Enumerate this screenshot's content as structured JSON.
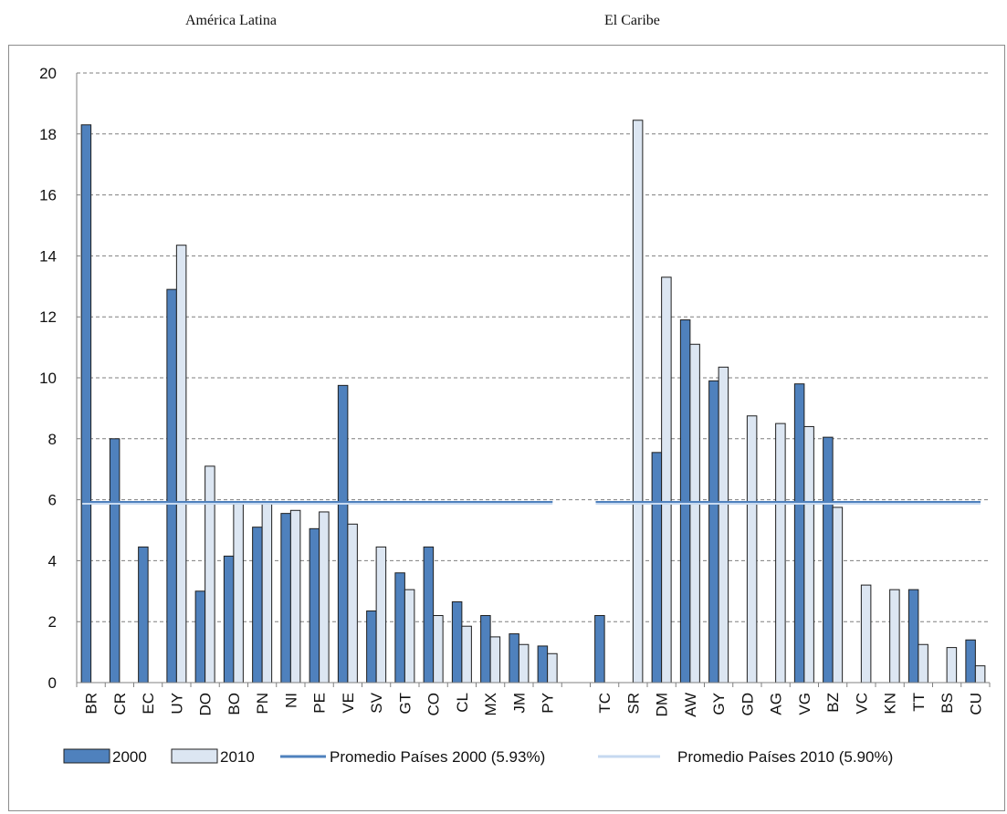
{
  "headers": {
    "left_region": "América Latina",
    "right_region": "El Caribe"
  },
  "chart_data": {
    "type": "bar",
    "ylim": [
      0,
      20
    ],
    "yticks": [
      "0",
      "2",
      "4",
      "6",
      "8",
      "10",
      "12",
      "14",
      "16",
      "18",
      "20"
    ],
    "grid": "horizontal dashed",
    "legend_position": "bottom",
    "colors": {
      "s2000": "#4f81bd",
      "s2010": "#dce6f2",
      "bar_outline": "#1f1f1f",
      "avg2000": "#4f81bd",
      "avg2010": "#c6d9f0",
      "grid": "#7f7f7f"
    },
    "categories": [
      "BR",
      "CR",
      "EC",
      "UY",
      "DO",
      "BO",
      "PN",
      "NI",
      "PE",
      "VE",
      "SV",
      "GT",
      "CO",
      "CL",
      "MX",
      "JM",
      "PY",
      "",
      "TC",
      "SR",
      "DM",
      "AW",
      "GY",
      "GD",
      "AG",
      "VG",
      "BZ",
      "VC",
      "KN",
      "TT",
      "BS",
      "CU"
    ],
    "series": [
      {
        "name": "2000",
        "values": [
          18.3,
          8.0,
          4.45,
          12.9,
          3.0,
          4.15,
          5.1,
          5.55,
          5.05,
          9.75,
          2.35,
          3.6,
          4.45,
          2.65,
          2.2,
          1.6,
          1.2,
          null,
          2.2,
          null,
          7.55,
          11.9,
          9.9,
          null,
          null,
          9.8,
          8.05,
          null,
          null,
          3.05,
          null,
          1.4
        ]
      },
      {
        "name": "2010",
        "values": [
          null,
          null,
          null,
          14.35,
          7.1,
          5.9,
          5.9,
          5.65,
          5.6,
          5.2,
          4.45,
          3.05,
          2.2,
          1.85,
          1.5,
          1.25,
          0.95,
          null,
          null,
          18.45,
          13.3,
          11.1,
          10.35,
          8.75,
          8.5,
          8.4,
          5.75,
          3.2,
          3.05,
          1.25,
          1.15,
          0.55
        ]
      }
    ],
    "averages": [
      {
        "label": "Promedio Países 2000 (5.93%)",
        "value": 5.93
      },
      {
        "label": "Promedio Países 2010 (5.90%)",
        "value": 5.9
      }
    ],
    "legend": [
      "2000",
      "2010",
      "Promedio Países 2000 (5.93%)",
      "Promedio Países 2010 (5.90%)"
    ]
  }
}
